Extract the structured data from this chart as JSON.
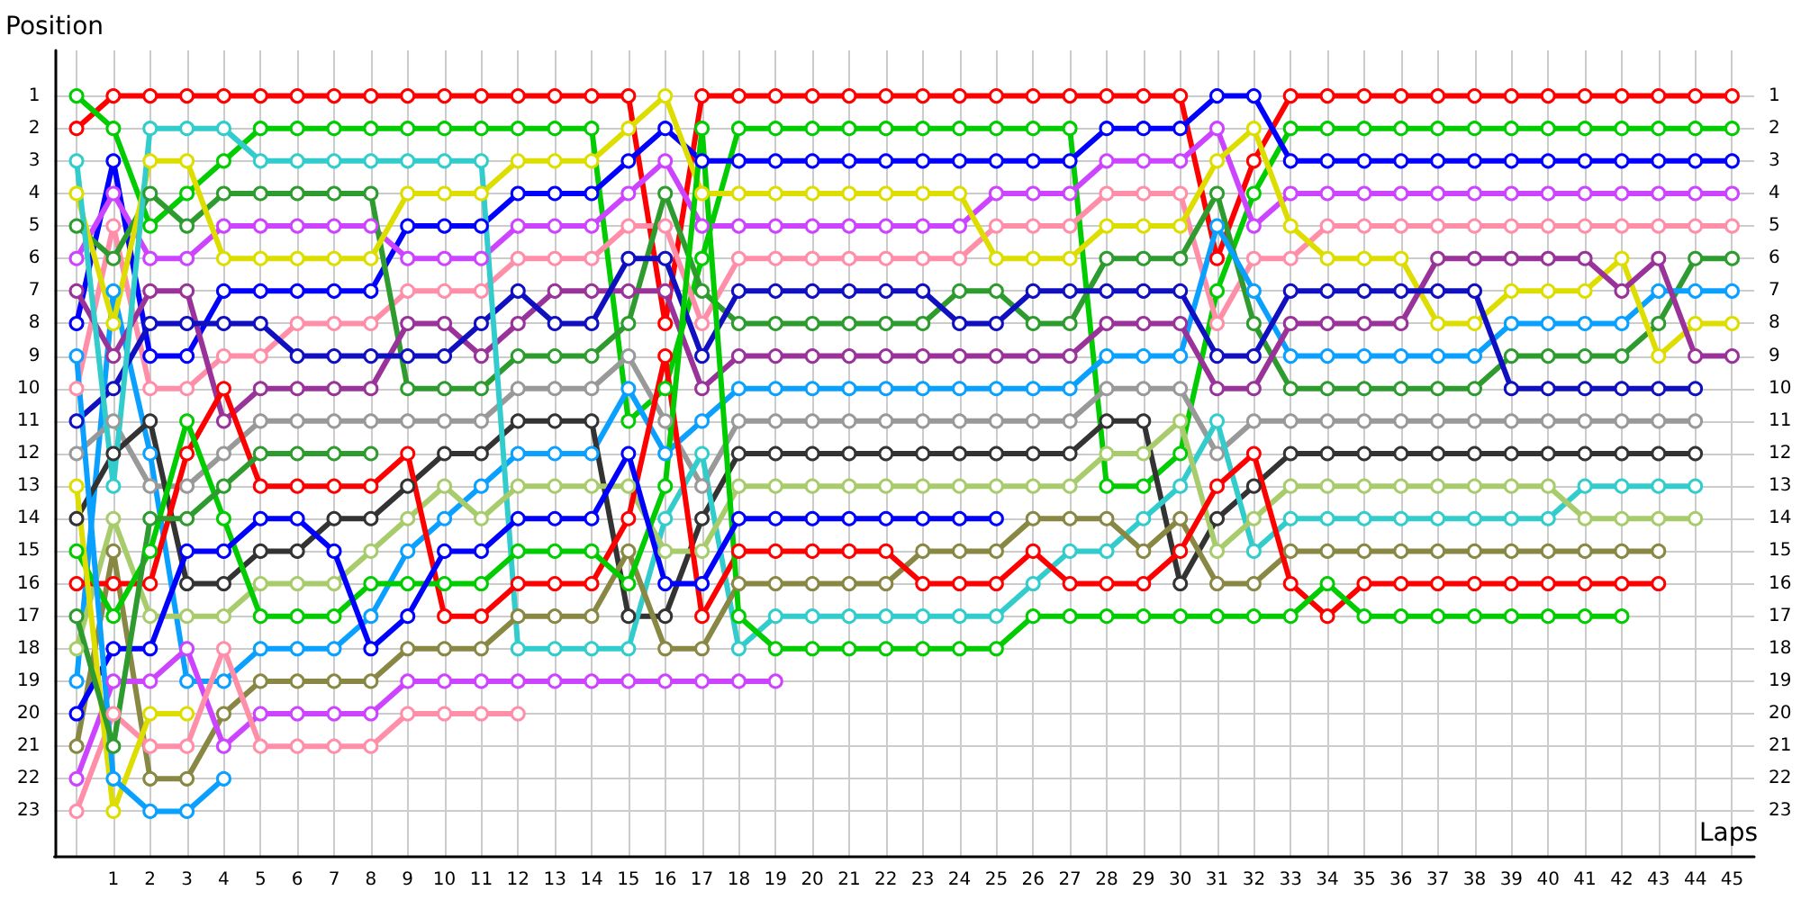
{
  "chart_data": {
    "type": "line",
    "xlabel": "Laps",
    "ylabel": "Position",
    "x": [
      0,
      1,
      2,
      3,
      4,
      5,
      6,
      7,
      8,
      9,
      10,
      11,
      12,
      13,
      14,
      15,
      16,
      17,
      18,
      19,
      20,
      21,
      22,
      23,
      24,
      25,
      26,
      27,
      28,
      29,
      30,
      31,
      32,
      33,
      34,
      35,
      36,
      37,
      38,
      39,
      40,
      41,
      42,
      43,
      44,
      45
    ],
    "xlim": [
      -0.6,
      45.6
    ],
    "xticks": [
      {
        "value": 0,
        "label": null
      },
      1,
      2,
      3,
      4,
      5,
      6,
      7,
      8,
      9,
      10,
      11,
      12,
      13,
      14,
      15,
      16,
      17,
      18,
      19,
      20,
      21,
      22,
      23,
      24,
      25,
      26,
      27,
      28,
      29,
      30,
      31,
      32,
      33,
      34,
      35,
      36,
      37,
      38,
      39,
      40,
      41,
      42,
      43,
      44,
      45
    ],
    "ylim": [
      24.4,
      -0.4
    ],
    "yticks": [
      1,
      2,
      3,
      4,
      5,
      6,
      7,
      8,
      9,
      10,
      11,
      12,
      13,
      14,
      15,
      16,
      17,
      18,
      19,
      20,
      21,
      22,
      23
    ],
    "y2lim": [
      24.4,
      -0.4
    ],
    "y2ticks": [
      1,
      2,
      3,
      4,
      5,
      6,
      7,
      8,
      9,
      10,
      11,
      12,
      13,
      14,
      15,
      16,
      17,
      18,
      19,
      20,
      21,
      22,
      23
    ],
    "grid": true,
    "marker": "circle",
    "line_style": "solid",
    "series": [
      {
        "color": "#ff0000",
        "values": [
          2,
          1,
          1,
          1,
          1,
          1,
          1,
          1,
          1,
          1,
          1,
          1,
          1,
          1,
          1,
          1,
          8,
          1,
          1,
          1,
          1,
          1,
          1,
          1,
          1,
          1,
          1,
          1,
          1,
          1,
          1,
          6,
          3,
          1,
          1,
          1,
          1,
          1,
          1,
          1,
          1,
          1,
          1,
          1,
          1,
          1
        ]
      },
      {
        "color": "#00cc00",
        "values": [
          1,
          2,
          5,
          4,
          3,
          2,
          2,
          2,
          2,
          2,
          2,
          2,
          2,
          2,
          2,
          11,
          10,
          6,
          2,
          2,
          2,
          2,
          2,
          2,
          2,
          2,
          2,
          2,
          13,
          13,
          12,
          7,
          4,
          2,
          2,
          2,
          2,
          2,
          2,
          2,
          2,
          2,
          2,
          2,
          2,
          2
        ]
      },
      {
        "color": "#0000ff",
        "values": [
          8,
          3,
          9,
          9,
          7,
          7,
          7,
          7,
          7,
          5,
          5,
          5,
          4,
          4,
          4,
          3,
          2,
          3,
          3,
          3,
          3,
          3,
          3,
          3,
          3,
          3,
          3,
          3,
          2,
          2,
          2,
          1,
          1,
          3,
          3,
          3,
          3,
          3,
          3,
          3,
          3,
          3,
          3,
          3,
          3,
          3
        ]
      },
      {
        "color": "#cc44ff",
        "values": [
          6,
          4,
          6,
          6,
          5,
          5,
          5,
          5,
          5,
          6,
          6,
          6,
          5,
          5,
          5,
          4,
          3,
          5,
          5,
          5,
          5,
          5,
          5,
          5,
          5,
          4,
          4,
          4,
          3,
          3,
          3,
          2,
          5,
          4,
          4,
          4,
          4,
          4,
          4,
          4,
          4,
          4,
          4,
          4,
          4,
          4
        ]
      },
      {
        "color": "#ff8fa8",
        "values": [
          10,
          5,
          10,
          10,
          9,
          9,
          8,
          8,
          8,
          7,
          7,
          7,
          6,
          6,
          6,
          5,
          5,
          8,
          6,
          6,
          6,
          6,
          6,
          6,
          6,
          5,
          5,
          5,
          4,
          4,
          4,
          8,
          6,
          6,
          5,
          5,
          5,
          5,
          5,
          5,
          5,
          5,
          5,
          5,
          5,
          5
        ]
      },
      {
        "color": "#2e9b2e",
        "values": [
          5,
          6,
          4,
          5,
          4,
          4,
          4,
          4,
          4,
          10,
          10,
          10,
          9,
          9,
          9,
          8,
          4,
          7,
          8,
          8,
          8,
          8,
          8,
          8,
          7,
          7,
          8,
          8,
          6,
          6,
          6,
          4,
          8,
          10,
          10,
          10,
          10,
          10,
          10,
          9,
          9,
          9,
          9,
          8,
          6,
          6
        ]
      },
      {
        "color": "#0aa0ff",
        "values": [
          19,
          7,
          12,
          19,
          19,
          18,
          18,
          18,
          17,
          15,
          14,
          13,
          12,
          12,
          12,
          10,
          12,
          11,
          10,
          10,
          10,
          10,
          10,
          10,
          10,
          10,
          10,
          10,
          9,
          9,
          9,
          5,
          7,
          9,
          9,
          9,
          9,
          9,
          9,
          8,
          8,
          8,
          8,
          7,
          7,
          7
        ]
      },
      {
        "color": "#dddd00",
        "values": [
          4,
          8,
          3,
          3,
          6,
          6,
          6,
          6,
          6,
          4,
          4,
          4,
          3,
          3,
          3,
          2,
          1,
          4,
          4,
          4,
          4,
          4,
          4,
          4,
          4,
          6,
          6,
          6,
          5,
          5,
          5,
          3,
          2,
          5,
          6,
          6,
          6,
          8,
          8,
          7,
          7,
          7,
          6,
          9,
          8,
          8
        ]
      },
      {
        "color": "#993399",
        "values": [
          7,
          9,
          7,
          7,
          11,
          10,
          10,
          10,
          10,
          8,
          8,
          9,
          8,
          7,
          7,
          7,
          7,
          10,
          9,
          9,
          9,
          9,
          9,
          9,
          9,
          9,
          9,
          9,
          8,
          8,
          8,
          10,
          10,
          8,
          8,
          8,
          8,
          6,
          6,
          6,
          6,
          6,
          7,
          6,
          9,
          9
        ]
      },
      {
        "color": "#1010c0",
        "values": [
          11,
          10,
          8,
          8,
          8,
          8,
          9,
          9,
          9,
          9,
          9,
          8,
          7,
          8,
          8,
          6,
          6,
          9,
          7,
          7,
          7,
          7,
          7,
          7,
          8,
          8,
          7,
          7,
          7,
          7,
          7,
          9,
          9,
          7,
          7,
          7,
          7,
          7,
          7,
          10,
          10,
          10,
          10,
          10,
          10,
          null
        ]
      },
      {
        "color": "#999999",
        "values": [
          12,
          11,
          13,
          13,
          12,
          11,
          11,
          11,
          11,
          11,
          11,
          11,
          10,
          10,
          10,
          9,
          11,
          13,
          11,
          11,
          11,
          11,
          11,
          11,
          11,
          11,
          11,
          11,
          10,
          10,
          10,
          12,
          11,
          11,
          11,
          11,
          11,
          11,
          11,
          11,
          11,
          11,
          11,
          11,
          11,
          null
        ]
      },
      {
        "color": "#333333",
        "values": [
          14,
          12,
          11,
          16,
          16,
          15,
          15,
          14,
          14,
          13,
          12,
          12,
          11,
          11,
          11,
          17,
          17,
          14,
          12,
          12,
          12,
          12,
          12,
          12,
          12,
          12,
          12,
          12,
          11,
          11,
          16,
          14,
          13,
          12,
          12,
          12,
          12,
          12,
          12,
          12,
          12,
          12,
          12,
          12,
          12,
          null
        ]
      },
      {
        "color": "#33cccc",
        "values": [
          3,
          13,
          2,
          2,
          2,
          3,
          3,
          3,
          3,
          3,
          3,
          3,
          18,
          18,
          18,
          18,
          14,
          12,
          18,
          17,
          17,
          17,
          17,
          17,
          17,
          17,
          16,
          15,
          15,
          14,
          13,
          11,
          15,
          14,
          14,
          14,
          14,
          14,
          14,
          14,
          14,
          13,
          13,
          13,
          13,
          null
        ]
      },
      {
        "color": "#a8cc6c",
        "values": [
          18,
          14,
          17,
          17,
          17,
          16,
          16,
          16,
          15,
          14,
          13,
          14,
          13,
          13,
          13,
          13,
          15,
          15,
          13,
          13,
          13,
          13,
          13,
          13,
          13,
          13,
          13,
          13,
          12,
          12,
          11,
          15,
          14,
          13,
          13,
          13,
          13,
          13,
          13,
          13,
          13,
          14,
          14,
          14,
          14,
          null
        ]
      },
      {
        "color": "#888844",
        "values": [
          21,
          15,
          22,
          22,
          20,
          19,
          19,
          19,
          19,
          18,
          18,
          18,
          17,
          17,
          17,
          15,
          18,
          18,
          16,
          16,
          16,
          16,
          16,
          15,
          15,
          15,
          14,
          14,
          14,
          15,
          14,
          16,
          16,
          15,
          15,
          15,
          15,
          15,
          15,
          15,
          15,
          15,
          15,
          15,
          null,
          null
        ]
      },
      {
        "color": "#ff0000",
        "values": [
          16,
          16,
          16,
          12,
          10,
          13,
          13,
          13,
          13,
          12,
          17,
          17,
          16,
          16,
          16,
          14,
          9,
          17,
          15,
          15,
          15,
          15,
          15,
          16,
          16,
          16,
          15,
          16,
          16,
          16,
          15,
          13,
          12,
          16,
          17,
          16,
          16,
          16,
          16,
          16,
          16,
          16,
          16,
          16,
          null,
          null
        ]
      },
      {
        "color": "#00cc00",
        "values": [
          15,
          17,
          15,
          11,
          14,
          17,
          17,
          17,
          16,
          16,
          16,
          16,
          15,
          15,
          15,
          16,
          13,
          2,
          17,
          18,
          18,
          18,
          18,
          18,
          18,
          18,
          17,
          17,
          17,
          17,
          17,
          17,
          17,
          17,
          16,
          17,
          17,
          17,
          17,
          17,
          17,
          17,
          17,
          null,
          null,
          null
        ]
      },
      {
        "color": "#0000ff",
        "values": [
          20,
          18,
          18,
          15,
          15,
          14,
          14,
          15,
          18,
          17,
          15,
          15,
          14,
          14,
          14,
          12,
          16,
          16,
          14,
          14,
          14,
          14,
          14,
          14,
          14,
          14,
          null,
          null,
          null,
          null,
          null,
          null,
          null,
          null,
          null,
          null,
          null,
          null,
          null,
          null,
          null,
          null,
          null,
          null,
          null,
          null
        ]
      },
      {
        "color": "#cc44ff",
        "values": [
          22,
          19,
          19,
          18,
          21,
          20,
          20,
          20,
          20,
          19,
          19,
          19,
          19,
          19,
          19,
          19,
          19,
          19,
          19,
          19,
          null,
          null,
          null,
          null,
          null,
          null,
          null,
          null,
          null,
          null,
          null,
          null,
          null,
          null,
          null,
          null,
          null,
          null,
          null,
          null,
          null,
          null,
          null,
          null,
          null,
          null
        ]
      },
      {
        "color": "#ff8fa8",
        "values": [
          23,
          20,
          21,
          21,
          18,
          21,
          21,
          21,
          21,
          20,
          20,
          20,
          20,
          null,
          null,
          null,
          null,
          null,
          null,
          null,
          null,
          null,
          null,
          null,
          null,
          null,
          null,
          null,
          null,
          null,
          null,
          null,
          null,
          null,
          null,
          null,
          null,
          null,
          null,
          null,
          null,
          null,
          null,
          null,
          null,
          null
        ]
      },
      {
        "color": "#dddd00",
        "values": [
          13,
          23,
          20,
          20,
          null,
          null,
          null,
          null,
          null,
          null,
          null,
          null,
          null,
          null,
          null,
          null,
          null,
          null,
          null,
          null,
          null,
          null,
          null,
          null,
          null,
          null,
          null,
          null,
          null,
          null,
          null,
          null,
          null,
          null,
          null,
          null,
          null,
          null,
          null,
          null,
          null,
          null,
          null,
          null,
          null,
          null
        ]
      },
      {
        "color": "#0aa0ff",
        "values": [
          9,
          22,
          23,
          23,
          22,
          null,
          null,
          null,
          null,
          null,
          null,
          null,
          null,
          null,
          null,
          null,
          null,
          null,
          null,
          null,
          null,
          null,
          null,
          null,
          null,
          null,
          null,
          null,
          null,
          null,
          null,
          null,
          null,
          null,
          null,
          null,
          null,
          null,
          null,
          null,
          null,
          null,
          null,
          null,
          null,
          null
        ]
      },
      {
        "color": "#2e9b2e",
        "values": [
          17,
          21,
          14,
          14,
          13,
          12,
          12,
          12,
          12,
          null,
          null,
          null,
          null,
          null,
          null,
          null,
          null,
          null,
          null,
          null,
          null,
          null,
          null,
          null,
          null,
          null,
          null,
          null,
          null,
          null,
          null,
          null,
          null,
          null,
          null,
          null,
          null,
          null,
          null,
          null,
          null,
          null,
          null,
          null,
          null,
          null
        ]
      }
    ]
  }
}
